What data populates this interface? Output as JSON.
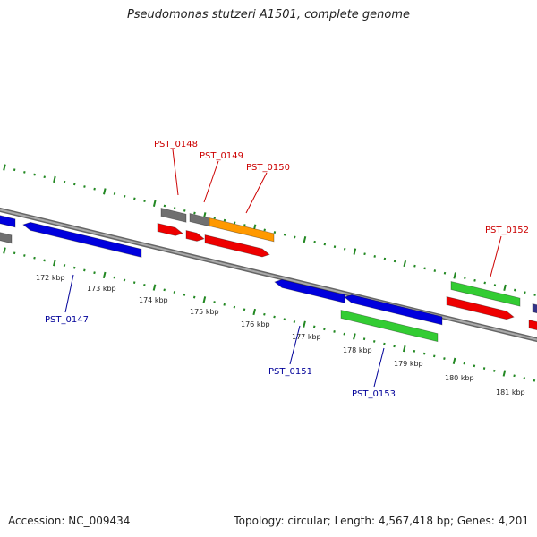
{
  "title": "Pseudomonas stutzeri A1501, complete genome",
  "footer": {
    "accession": "Accession: NC_009434",
    "summary": "Topology: circular; Length: 4,567,418 bp; Genes: 4,201"
  },
  "colors": {
    "backbone": "#888888",
    "tick": "#228822",
    "forward_label": "#cc0000",
    "reverse_label": "#000099",
    "gray": "#707070",
    "orange": "#ff9900",
    "red": "#ee0000",
    "blue": "#0000dd",
    "green": "#33cc33",
    "navy": "#333388"
  },
  "kbp_labels": [
    "172 kbp",
    "173 kbp",
    "174 kbp",
    "175 kbp",
    "176 kbp",
    "177 kbp",
    "178 kbp",
    "179 kbp",
    "180 kbp",
    "181 kbp"
  ],
  "gene_labels": [
    {
      "text": "PST_0147",
      "strand": "reverse"
    },
    {
      "text": "PST_0148",
      "strand": "forward"
    },
    {
      "text": "PST_0149",
      "strand": "forward"
    },
    {
      "text": "PST_0150",
      "strand": "forward"
    },
    {
      "text": "PST_0151",
      "strand": "reverse"
    },
    {
      "text": "PST_0152",
      "strand": "forward"
    },
    {
      "text": "PST_0153",
      "strand": "reverse"
    }
  ]
}
